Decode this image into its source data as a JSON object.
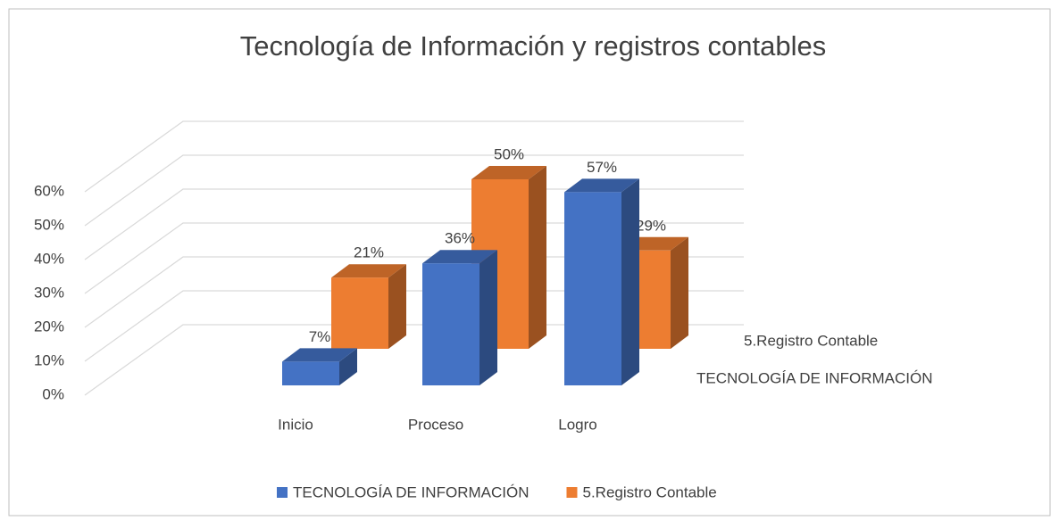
{
  "chart_data": {
    "type": "bar3d",
    "title": "Tecnología de  Información y   registros contables",
    "categories": [
      "Inicio",
      "Proceso",
      "Logro"
    ],
    "series": [
      {
        "name": "TECNOLOGÍA DE INFORMACIÓN",
        "color": "#4472c4",
        "values": [
          7,
          36,
          57
        ],
        "value_labels": [
          "7%",
          "36%",
          "57%"
        ]
      },
      {
        "name": "5.Registro Contable",
        "color": "#ed7d31",
        "values": [
          21,
          50,
          29
        ],
        "value_labels": [
          "21%",
          "50%",
          "29%"
        ]
      }
    ],
    "ylim": [
      0,
      60
    ],
    "yticks": [
      {
        "value": 0,
        "label": "0%"
      },
      {
        "value": 10,
        "label": "10%"
      },
      {
        "value": 20,
        "label": "20%"
      },
      {
        "value": 30,
        "label": "30%"
      },
      {
        "value": 40,
        "label": "40%"
      },
      {
        "value": 50,
        "label": "50%"
      },
      {
        "value": 60,
        "label": "60%"
      }
    ],
    "grid": true,
    "legend": "bottom"
  }
}
